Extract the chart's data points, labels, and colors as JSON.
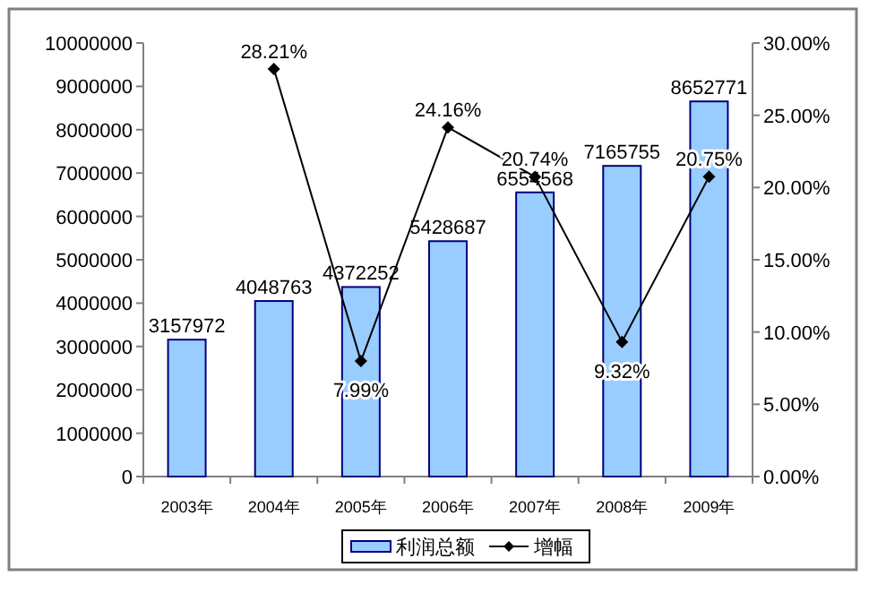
{
  "chart_data": {
    "type": "bar",
    "categories": [
      "2003年",
      "2004年",
      "2005年",
      "2006年",
      "2007年",
      "2008年",
      "2009年"
    ],
    "series": [
      {
        "name": "利润总额",
        "color": "#99ccff",
        "values": [
          3157972,
          4048763,
          4372252,
          5428687,
          6554568,
          7165755,
          8652771
        ]
      },
      {
        "name": "增幅",
        "type": "line",
        "axis": "y2",
        "color": "#000000",
        "marker": "diamond",
        "values": [
          null,
          28.21,
          7.99,
          24.16,
          20.74,
          9.32,
          20.75
        ],
        "value_labels": [
          null,
          "28.21%",
          "7.99%",
          "24.16%",
          "20.74%",
          "9.32%",
          "20.75%"
        ]
      }
    ],
    "ylim": [
      0,
      10000000
    ],
    "yticks": [
      0,
      1000000,
      2000000,
      3000000,
      4000000,
      5000000,
      6000000,
      7000000,
      8000000,
      9000000,
      10000000
    ],
    "y2lim": [
      0,
      30
    ],
    "y2ticks": [
      {
        "value": 0,
        "label": "0.00%"
      },
      {
        "value": 5,
        "label": "5.00%"
      },
      {
        "value": 10,
        "label": "10.00%"
      },
      {
        "value": 15,
        "label": "15.00%"
      },
      {
        "value": 20,
        "label": "20.00%"
      },
      {
        "value": 25,
        "label": "25.00%"
      },
      {
        "value": 30,
        "label": "30.00%"
      }
    ],
    "data_labels": true,
    "grid": false,
    "legend": "bottom"
  }
}
